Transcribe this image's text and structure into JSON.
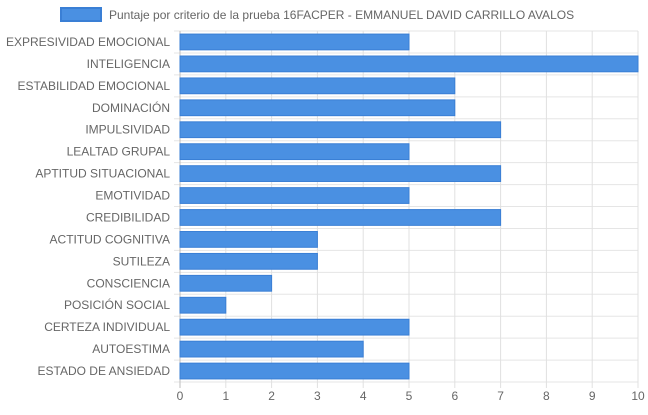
{
  "chart_data": {
    "type": "bar",
    "orientation": "horizontal",
    "categories": [
      "EXPRESIVIDAD EMOCIONAL",
      "INTELIGENCIA",
      "ESTABILIDAD EMOCIONAL",
      "DOMINACIÓN",
      "IMPULSIVIDAD",
      "LEALTAD GRUPAL",
      "APTITUD SITUACIONAL",
      "EMOTIVIDAD",
      "CREDIBILIDAD",
      "ACTITUD COGNITIVA",
      "SUTILEZA",
      "CONSCIENCIA",
      "POSICIÓN SOCIAL",
      "CERTEZA INDIVIDUAL",
      "AUTOESTIMA",
      "ESTADO DE ANSIEDAD"
    ],
    "series": [
      {
        "name": "Puntaje por criterio de la prueba 16FACPER - EMMANUEL DAVID CARRILLO AVALOS",
        "values": [
          5,
          10,
          6,
          6,
          7,
          5,
          7,
          5,
          7,
          3,
          3,
          2,
          1,
          5,
          4,
          5
        ],
        "color": "#4a90e2",
        "border_color": "#3a7fd5"
      }
    ],
    "xlim": [
      0,
      10
    ],
    "xticks": [
      "0",
      "1",
      "2",
      "3",
      "4",
      "5",
      "6",
      "7",
      "8",
      "9",
      "10"
    ],
    "grid": true,
    "legend_position": "top"
  }
}
